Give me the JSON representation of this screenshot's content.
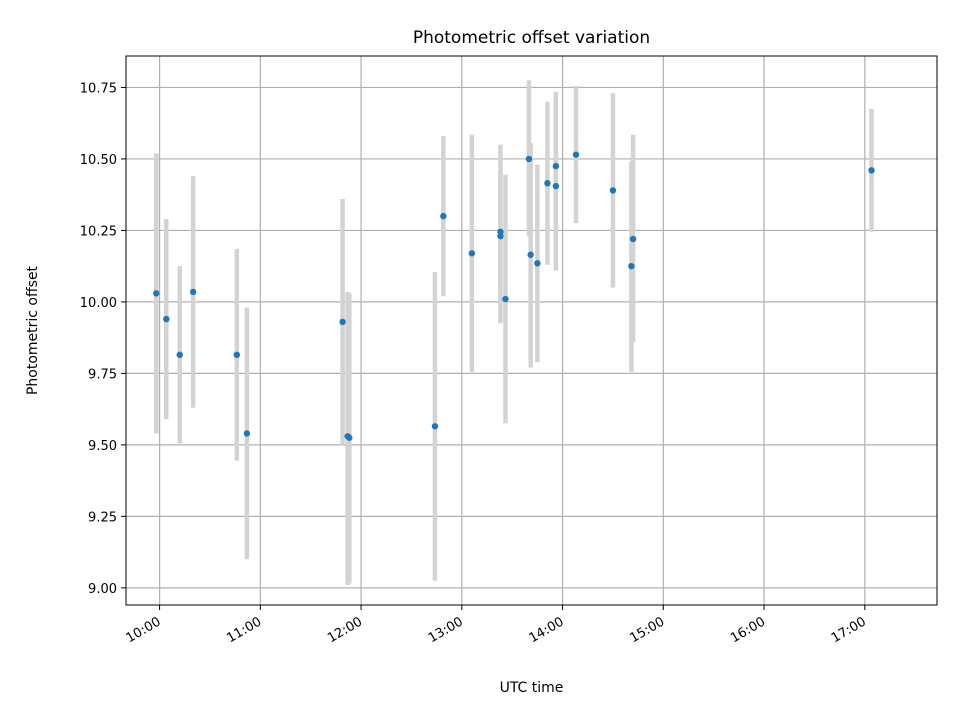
{
  "chart_data": {
    "type": "scatter",
    "title": "Photometric offset variation",
    "xlabel": "UTC time",
    "ylabel": "Photometric offset",
    "xlim": [
      "09:40",
      "17:43"
    ],
    "ylim": [
      8.94,
      10.86
    ],
    "grid": true,
    "x_ticks": [
      "10:00",
      "11:00",
      "12:00",
      "13:00",
      "14:00",
      "15:00",
      "16:00",
      "17:00"
    ],
    "y_ticks": [
      "9.00",
      "9.25",
      "9.50",
      "9.75",
      "10.00",
      "10.25",
      "10.50",
      "10.75"
    ],
    "colors": {
      "points": "#1f77b4",
      "error_bars": "#d3d3d3",
      "grid": "#b0b0b0",
      "frame": "#000000"
    },
    "points": [
      {
        "x": "09:58",
        "y": 10.03,
        "ylow": 9.54,
        "yhigh": 10.52
      },
      {
        "x": "10:04",
        "y": 9.94,
        "ylow": 9.59,
        "yhigh": 10.29
      },
      {
        "x": "10:12",
        "y": 9.815,
        "ylow": 9.505,
        "yhigh": 10.125
      },
      {
        "x": "10:20",
        "y": 10.035,
        "ylow": 9.63,
        "yhigh": 10.44
      },
      {
        "x": "10:46",
        "y": 9.815,
        "ylow": 9.445,
        "yhigh": 10.185
      },
      {
        "x": "10:52",
        "y": 9.54,
        "ylow": 9.1,
        "yhigh": 9.98
      },
      {
        "x": "11:49",
        "y": 9.93,
        "ylow": 9.5,
        "yhigh": 10.36
      },
      {
        "x": "11:52",
        "y": 9.53,
        "ylow": 9.01,
        "yhigh": 10.035
      },
      {
        "x": "11:53",
        "y": 9.525,
        "ylow": 9.015,
        "yhigh": 10.03
      },
      {
        "x": "12:44",
        "y": 9.565,
        "ylow": 9.025,
        "yhigh": 10.105
      },
      {
        "x": "12:49",
        "y": 10.3,
        "ylow": 10.02,
        "yhigh": 10.58
      },
      {
        "x": "13:06",
        "y": 10.17,
        "ylow": 9.755,
        "yhigh": 10.585
      },
      {
        "x": "13:23",
        "y": 10.23,
        "ylow": 9.925,
        "yhigh": 10.55
      },
      {
        "x": "13:23",
        "y": 10.245,
        "ylow": 10.03,
        "yhigh": 10.46
      },
      {
        "x": "13:26",
        "y": 10.01,
        "ylow": 9.575,
        "yhigh": 10.445
      },
      {
        "x": "13:40",
        "y": 10.5,
        "ylow": 10.23,
        "yhigh": 10.775
      },
      {
        "x": "13:41",
        "y": 10.165,
        "ylow": 9.77,
        "yhigh": 10.555
      },
      {
        "x": "13:45",
        "y": 10.135,
        "ylow": 9.79,
        "yhigh": 10.48
      },
      {
        "x": "13:51",
        "y": 10.415,
        "ylow": 10.13,
        "yhigh": 10.7
      },
      {
        "x": "13:56",
        "y": 10.405,
        "ylow": 10.11,
        "yhigh": 10.7
      },
      {
        "x": "13:56",
        "y": 10.475,
        "ylow": 10.22,
        "yhigh": 10.735
      },
      {
        "x": "14:08",
        "y": 10.515,
        "ylow": 10.275,
        "yhigh": 10.755
      },
      {
        "x": "14:30",
        "y": 10.39,
        "ylow": 10.05,
        "yhigh": 10.73
      },
      {
        "x": "14:41",
        "y": 10.125,
        "ylow": 9.755,
        "yhigh": 10.49
      },
      {
        "x": "14:42",
        "y": 10.22,
        "ylow": 9.86,
        "yhigh": 10.585
      },
      {
        "x": "17:04",
        "y": 10.46,
        "ylow": 10.245,
        "yhigh": 10.675
      }
    ]
  }
}
